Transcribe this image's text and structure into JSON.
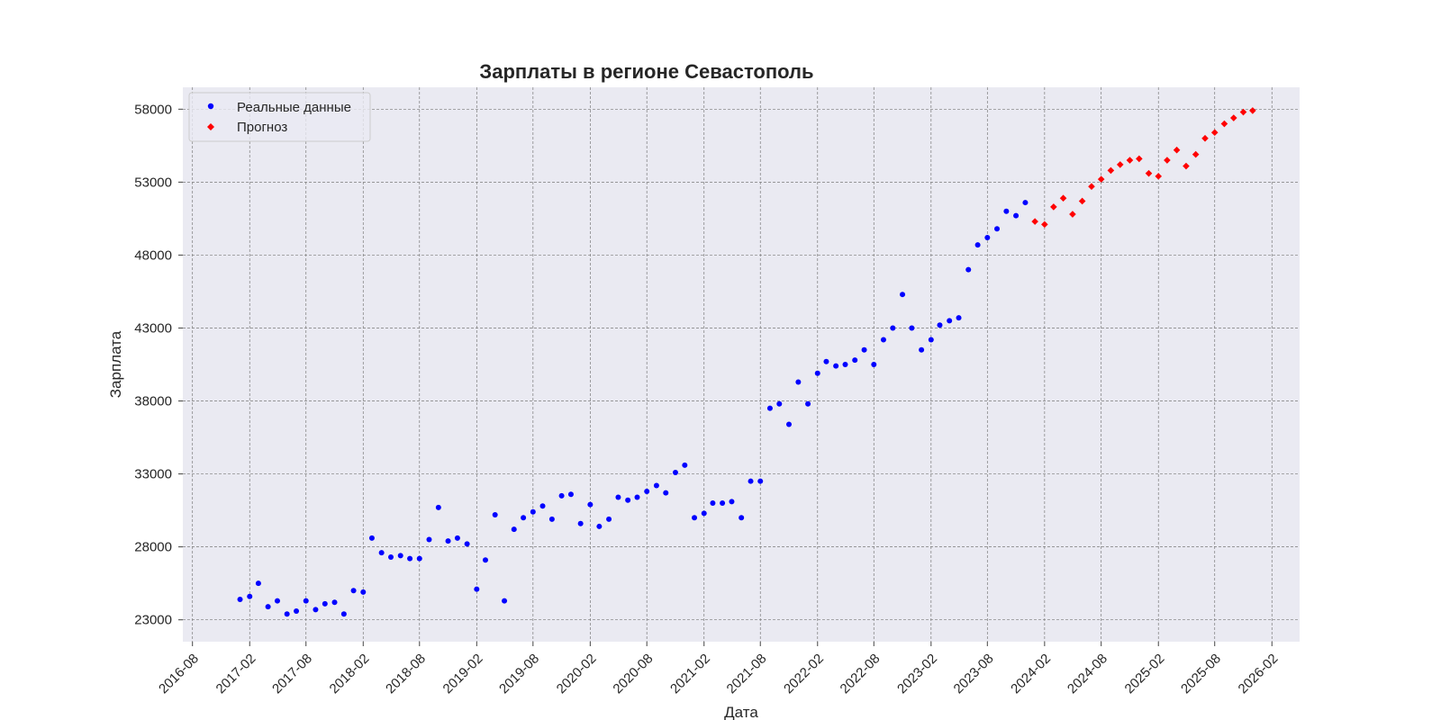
{
  "chart_data": {
    "type": "scatter",
    "title": "Зарплаты в регионе Севастополь",
    "xlabel": "Дата",
    "ylabel": "Зарплата",
    "xlim": [
      "2016-07-01",
      "2026-05-01"
    ],
    "ylim": [
      21500,
      59500
    ],
    "x_ticks": [
      "2016-08",
      "2017-02",
      "2017-08",
      "2018-02",
      "2018-08",
      "2019-02",
      "2019-08",
      "2020-02",
      "2020-08",
      "2021-02",
      "2021-08",
      "2022-02",
      "2022-08",
      "2023-02",
      "2023-08",
      "2024-02",
      "2024-08",
      "2025-02",
      "2025-08",
      "2026-02"
    ],
    "y_ticks": [
      23000,
      28000,
      33000,
      38000,
      43000,
      48000,
      53000,
      58000
    ],
    "grid": true,
    "legend_position": "top-left",
    "background": "#eaeaf2",
    "series": [
      {
        "name": "Реальные данные",
        "color": "#0000ff",
        "marker": "circle",
        "points": [
          [
            "2017-01",
            24400
          ],
          [
            "2017-02",
            24600
          ],
          [
            "2017-03",
            25500
          ],
          [
            "2017-04",
            23900
          ],
          [
            "2017-05",
            24300
          ],
          [
            "2017-06",
            23400
          ],
          [
            "2017-07",
            23600
          ],
          [
            "2017-08",
            24300
          ],
          [
            "2017-09",
            23700
          ],
          [
            "2017-10",
            24100
          ],
          [
            "2017-11",
            24200
          ],
          [
            "2017-12",
            23400
          ],
          [
            "2018-01",
            25000
          ],
          [
            "2018-02",
            24900
          ],
          [
            "2018-03",
            28600
          ],
          [
            "2018-04",
            27600
          ],
          [
            "2018-05",
            27300
          ],
          [
            "2018-06",
            27400
          ],
          [
            "2018-07",
            27200
          ],
          [
            "2018-08",
            27200
          ],
          [
            "2018-09",
            28500
          ],
          [
            "2018-10",
            30700
          ],
          [
            "2018-11",
            28400
          ],
          [
            "2018-12",
            28600
          ],
          [
            "2019-01",
            28200
          ],
          [
            "2019-02",
            25100
          ],
          [
            "2019-03",
            27100
          ],
          [
            "2019-04",
            30200
          ],
          [
            "2019-05",
            24300
          ],
          [
            "2019-06",
            29200
          ],
          [
            "2019-07",
            30000
          ],
          [
            "2019-08",
            30400
          ],
          [
            "2019-09",
            30800
          ],
          [
            "2019-10",
            29900
          ],
          [
            "2019-11",
            31500
          ],
          [
            "2019-12",
            31600
          ],
          [
            "2020-01",
            29600
          ],
          [
            "2020-02",
            30900
          ],
          [
            "2020-03",
            29400
          ],
          [
            "2020-04",
            29900
          ],
          [
            "2020-05",
            31400
          ],
          [
            "2020-06",
            31200
          ],
          [
            "2020-07",
            31400
          ],
          [
            "2020-08",
            31800
          ],
          [
            "2020-09",
            32200
          ],
          [
            "2020-10",
            31700
          ],
          [
            "2020-11",
            33100
          ],
          [
            "2020-12",
            33600
          ],
          [
            "2021-01",
            30000
          ],
          [
            "2021-02",
            30300
          ],
          [
            "2021-03",
            31000
          ],
          [
            "2021-04",
            31000
          ],
          [
            "2021-05",
            31100
          ],
          [
            "2021-06",
            30000
          ],
          [
            "2021-07",
            32500
          ],
          [
            "2021-08",
            32500
          ],
          [
            "2021-09",
            37500
          ],
          [
            "2021-10",
            37800
          ],
          [
            "2021-11",
            36400
          ],
          [
            "2021-12",
            39300
          ],
          [
            "2022-01",
            37800
          ],
          [
            "2022-02",
            39900
          ],
          [
            "2022-03",
            40700
          ],
          [
            "2022-04",
            40400
          ],
          [
            "2022-05",
            40500
          ],
          [
            "2022-06",
            40800
          ],
          [
            "2022-07",
            41500
          ],
          [
            "2022-08",
            40500
          ],
          [
            "2022-09",
            42200
          ],
          [
            "2022-10",
            43000
          ],
          [
            "2022-11",
            45300
          ],
          [
            "2022-12",
            43000
          ],
          [
            "2023-01",
            41500
          ],
          [
            "2023-02",
            42200
          ],
          [
            "2023-03",
            43200
          ],
          [
            "2023-04",
            43500
          ],
          [
            "2023-05",
            43700
          ],
          [
            "2023-06",
            47000
          ],
          [
            "2023-07",
            48700
          ],
          [
            "2023-08",
            49200
          ],
          [
            "2023-09",
            49800
          ],
          [
            "2023-10",
            51000
          ],
          [
            "2023-11",
            50700
          ],
          [
            "2023-12",
            51600
          ]
        ]
      },
      {
        "name": "Прогноз",
        "color": "#ff0000",
        "marker": "diamond",
        "points": [
          [
            "2024-01",
            50300
          ],
          [
            "2024-02",
            50100
          ],
          [
            "2024-03",
            51300
          ],
          [
            "2024-04",
            51900
          ],
          [
            "2024-05",
            50800
          ],
          [
            "2024-06",
            51700
          ],
          [
            "2024-07",
            52700
          ],
          [
            "2024-08",
            53200
          ],
          [
            "2024-09",
            53800
          ],
          [
            "2024-10",
            54200
          ],
          [
            "2024-11",
            54500
          ],
          [
            "2024-12",
            54600
          ],
          [
            "2025-01",
            53600
          ],
          [
            "2025-02",
            53400
          ],
          [
            "2025-03",
            54500
          ],
          [
            "2025-04",
            55200
          ],
          [
            "2025-05",
            54100
          ],
          [
            "2025-06",
            54900
          ],
          [
            "2025-07",
            56000
          ],
          [
            "2025-08",
            56400
          ],
          [
            "2025-09",
            57000
          ],
          [
            "2025-10",
            57400
          ],
          [
            "2025-11",
            57800
          ],
          [
            "2025-12",
            57900
          ]
        ]
      }
    ]
  }
}
